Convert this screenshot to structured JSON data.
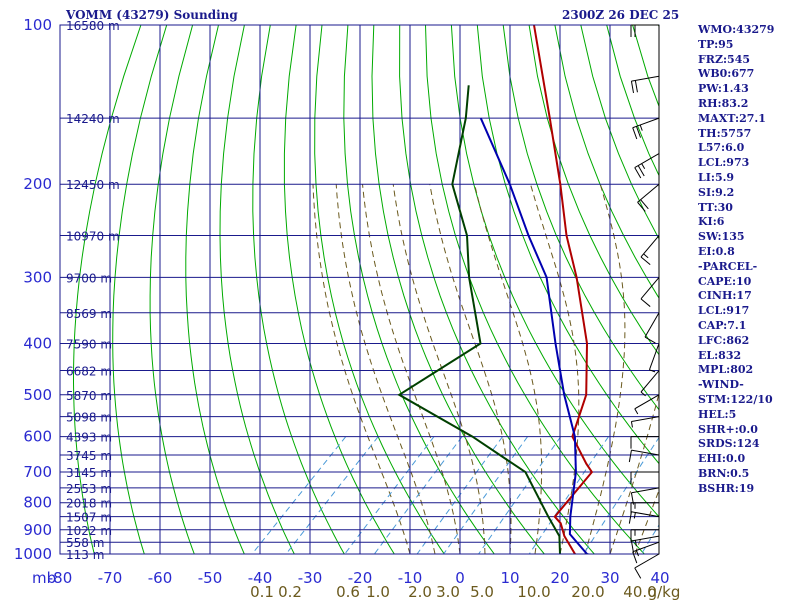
{
  "window": {
    "title_left": "VOMM (43279) Sounding",
    "title_right": "2300Z 26 DEC 25"
  },
  "colors": {
    "temperature": "#b00000",
    "dewpoint": "#004000",
    "parcel": "#0000b0",
    "grid": "#1a1a8c",
    "dry_adiabat": "#00aa00",
    "moist_adiabat": "#6b5a1e",
    "mixing_ratio": "#4a9ad8",
    "wind_barb": "#000000"
  },
  "indices": [
    "WMO:43279",
    "TP:95",
    "FRZ:545",
    "WB0:677",
    "PW:1.43",
    "RH:83.2",
    "MAXT:27.1",
    "TH:5757",
    "L57:6.0",
    "LCL:973",
    "LI:5.9",
    "SI:9.2",
    "TT:30",
    "KI:6",
    "SW:135",
    "EI:0.8",
    "-PARCEL-",
    "CAPE:10",
    "CINH:17",
    "LCL:917",
    "CAP:7.1",
    "LFC:862",
    "EL:832",
    "MPL:802",
    "-WIND-",
    "STM:122/10",
    "HEL:5",
    "SHR+:0.0",
    "SRDS:124",
    "EHI:0.0",
    "BRN:0.5",
    "BSHR:19"
  ],
  "chart_data": {
    "type": "skew-t sounding",
    "title": "VOMM (43279) Sounding",
    "valid_time": "2300Z 26 DEC 25",
    "pressure_unit_label": "mb",
    "pressure_ticks": [
      100,
      200,
      300,
      400,
      500,
      600,
      700,
      800,
      900,
      1000
    ],
    "pressure_tick_labels": [
      "100",
      "200",
      "300",
      "400",
      "500",
      "600",
      "700",
      "800",
      "900",
      "1000"
    ],
    "pressure_range": [
      100,
      1000
    ],
    "temperature_ticks": [
      -80,
      -70,
      -60,
      -50,
      -40,
      -30,
      -20,
      -10,
      0,
      10,
      20,
      30,
      40
    ],
    "temperature_tick_labels": [
      "-80",
      "-70",
      "-60",
      "-50",
      "-40",
      "-30",
      "-20",
      "-10",
      "0",
      "10",
      "20",
      "30",
      "40"
    ],
    "height_levels": [
      {
        "p": 100,
        "label": "16580 m"
      },
      {
        "p": 150,
        "label": "14240 m"
      },
      {
        "p": 200,
        "label": "12450 m"
      },
      {
        "p": 250,
        "label": "10970 m"
      },
      {
        "p": 300,
        "label": "9700 m"
      },
      {
        "p": 350,
        "label": "8569 m"
      },
      {
        "p": 400,
        "label": "7590 m"
      },
      {
        "p": 450,
        "label": "6682 m"
      },
      {
        "p": 500,
        "label": "5870 m"
      },
      {
        "p": 550,
        "label": "5098 m"
      },
      {
        "p": 600,
        "label": "4393 m"
      },
      {
        "p": 650,
        "label": "3745 m"
      },
      {
        "p": 700,
        "label": "3145 m"
      },
      {
        "p": 750,
        "label": "2553 m"
      },
      {
        "p": 800,
        "label": "2018 m"
      },
      {
        "p": 850,
        "label": "1507 m"
      },
      {
        "p": 900,
        "label": "1022 m"
      },
      {
        "p": 950,
        "label": "558 m"
      },
      {
        "p": 1000,
        "label": "113 m"
      }
    ],
    "mixing_ratio_labels": [
      "0.1",
      "0.2",
      "0.6",
      "1.0",
      "2.0",
      "3.0",
      "5.0",
      "10.0",
      "20.0",
      "40.0",
      "g/kg"
    ],
    "series": [
      {
        "name": "Temperature",
        "unit": "°C",
        "points": [
          {
            "p": 1008,
            "t": 24.0
          },
          {
            "p": 1000,
            "t": 23.0
          },
          {
            "p": 925,
            "t": 17.3
          },
          {
            "p": 875,
            "t": 14.0
          },
          {
            "p": 850,
            "t": 11.5
          },
          {
            "p": 700,
            "t": 10.0
          },
          {
            "p": 675,
            "t": 7.2
          },
          {
            "p": 600,
            "t": -1.0
          },
          {
            "p": 500,
            "t": -6.6
          },
          {
            "p": 400,
            "t": -16.7
          },
          {
            "p": 300,
            "t": -32.0
          },
          {
            "p": 250,
            "t": -42.4
          },
          {
            "p": 200,
            "t": -53.9
          },
          {
            "p": 150,
            "t": -69.2
          },
          {
            "p": 125,
            "t": -79.0
          },
          {
            "p": 100,
            "t": -91.0
          }
        ]
      },
      {
        "name": "Dewpoint",
        "unit": "°C",
        "points": [
          {
            "p": 1008,
            "t": 20.5
          },
          {
            "p": 1000,
            "t": 20.0
          },
          {
            "p": 925,
            "t": 16.3
          },
          {
            "p": 850,
            "t": 10.2
          },
          {
            "p": 700,
            "t": -3.3
          },
          {
            "p": 600,
            "t": -21.0
          },
          {
            "p": 500,
            "t": -44.0
          },
          {
            "p": 400,
            "t": -38.0
          },
          {
            "p": 300,
            "t": -53.5
          },
          {
            "p": 250,
            "t": -62.3
          },
          {
            "p": 200,
            "t": -75.5
          },
          {
            "p": 150,
            "t": -86.0
          },
          {
            "p": 130,
            "t": -92.0
          }
        ]
      },
      {
        "name": "Parcel",
        "unit": "°C",
        "points": [
          {
            "p": 1008,
            "t": 27.0
          },
          {
            "p": 1000,
            "t": 25.4
          },
          {
            "p": 917,
            "t": 18.0
          },
          {
            "p": 850,
            "t": 14.6
          },
          {
            "p": 700,
            "t": 6.8
          },
          {
            "p": 600,
            "t": -0.5
          },
          {
            "p": 500,
            "t": -11.0
          },
          {
            "p": 400,
            "t": -23.0
          },
          {
            "p": 300,
            "t": -38.0
          },
          {
            "p": 250,
            "t": -50.0
          },
          {
            "p": 200,
            "t": -64.0
          },
          {
            "p": 150,
            "t": -83.0
          }
        ]
      }
    ],
    "wind_barbs": [
      {
        "p": 1000,
        "dir": 60,
        "kt": 10
      },
      {
        "p": 950,
        "dir": 70,
        "kt": 15
      },
      {
        "p": 925,
        "dir": 80,
        "kt": 15
      },
      {
        "p": 900,
        "dir": 90,
        "kt": 15
      },
      {
        "p": 850,
        "dir": 100,
        "kt": 15
      },
      {
        "p": 800,
        "dir": 90,
        "kt": 15
      },
      {
        "p": 750,
        "dir": 80,
        "kt": 10
      },
      {
        "p": 700,
        "dir": 90,
        "kt": 10
      },
      {
        "p": 650,
        "dir": 100,
        "kt": 10
      },
      {
        "p": 600,
        "dir": 90,
        "kt": 10
      },
      {
        "p": 550,
        "dir": 80,
        "kt": 5
      },
      {
        "p": 500,
        "dir": 60,
        "kt": 5
      },
      {
        "p": 450,
        "dir": 40,
        "kt": 5
      },
      {
        "p": 400,
        "dir": 20,
        "kt": 5
      },
      {
        "p": 350,
        "dir": 30,
        "kt": 10
      },
      {
        "p": 300,
        "dir": 40,
        "kt": 10
      },
      {
        "p": 250,
        "dir": 40,
        "kt": 15
      },
      {
        "p": 200,
        "dir": 50,
        "kt": 20
      },
      {
        "p": 175,
        "dir": 60,
        "kt": 25
      },
      {
        "p": 150,
        "dir": 70,
        "kt": 25
      },
      {
        "p": 125,
        "dir": 80,
        "kt": 20
      },
      {
        "p": 100,
        "dir": 90,
        "kt": 20
      }
    ]
  }
}
